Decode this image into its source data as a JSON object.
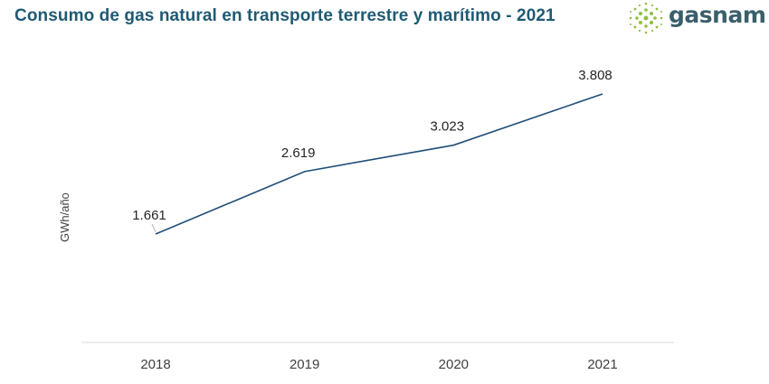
{
  "header": {
    "title": "Consumo de gas natural en transporte terrestre y marítimo - 2021",
    "logo_text": "gasnam"
  },
  "colors": {
    "title": "#1f5a73",
    "line": "#1f4e79",
    "axis": "#d9d9d9",
    "logo_green": "#8fbf3f"
  },
  "chart_data": {
    "type": "line",
    "title": "Consumo de gas natural en transporte terrestre y marítimo - 2021",
    "xlabel": "",
    "ylabel": "GWh/año",
    "categories": [
      "2018",
      "2019",
      "2020",
      "2021"
    ],
    "series": [
      {
        "values": [
          1661,
          2619,
          3023,
          3808
        ],
        "labels": [
          "1.661",
          "2.619",
          "3.023",
          "3.808"
        ]
      }
    ],
    "grid": false,
    "legend": "none"
  }
}
